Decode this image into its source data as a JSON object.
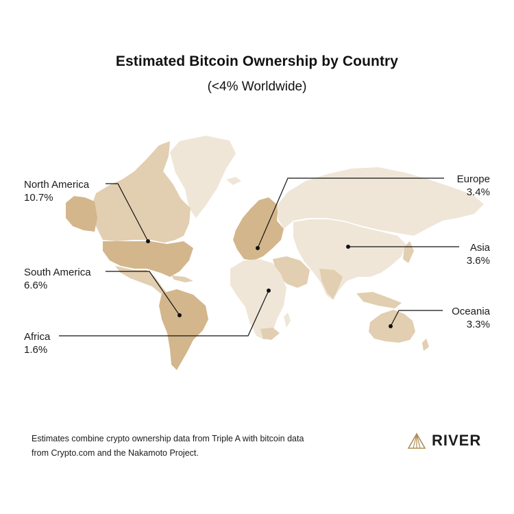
{
  "header": {
    "title": "Estimated Bitcoin Ownership by Country",
    "subtitle": "(<4% Worldwide)"
  },
  "regions": [
    {
      "key": "north_america",
      "name": "North America",
      "value": "10.7%"
    },
    {
      "key": "south_america",
      "name": "South America",
      "value": "6.6%"
    },
    {
      "key": "africa",
      "name": "Africa",
      "value": "1.6%"
    },
    {
      "key": "europe",
      "name": "Europe",
      "value": "3.4%"
    },
    {
      "key": "asia",
      "name": "Asia",
      "value": "3.6%"
    },
    {
      "key": "oceania",
      "name": "Oceania",
      "value": "3.3%"
    }
  ],
  "colors": {
    "land_light": "#efe6d8",
    "land_mid": "#e2ceb0",
    "land_dark": "#d3b68c",
    "leader_line": "#111111",
    "brand_gold": "#b08d57"
  },
  "footnote": "Estimates combine crypto ownership data from Triple A with bitcoin data from Crypto.com and the Nakamoto Project.",
  "brand": {
    "name": "RIVER",
    "logo_icon": "river-mountain-icon"
  }
}
